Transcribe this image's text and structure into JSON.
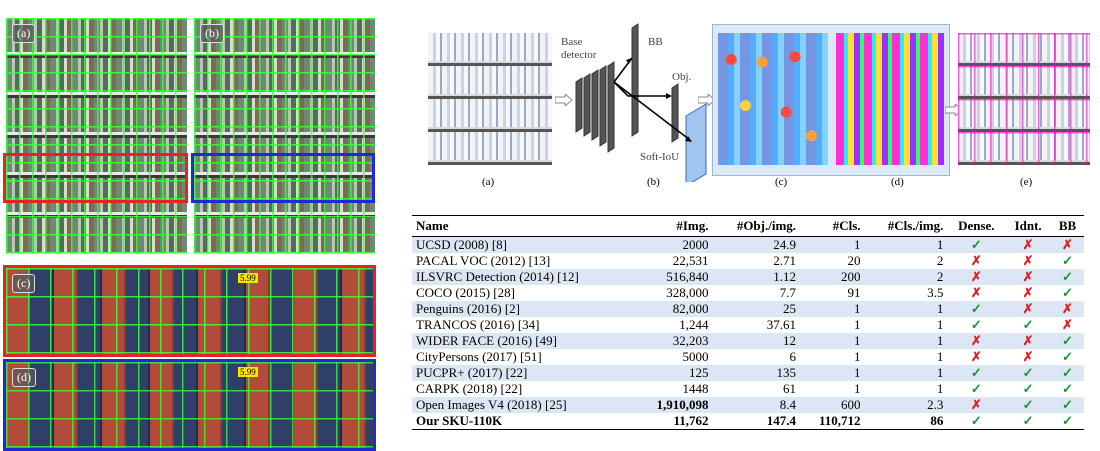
{
  "left_panels": {
    "a_label": "(a)",
    "b_label": "(b)",
    "c_label": "(c)",
    "d_label": "(d)",
    "price_tag": "5.99"
  },
  "pipeline": {
    "base_detector": "Base detector",
    "bb": "BB",
    "obj": "Obj.",
    "soft_iou": "Soft-IoU",
    "captions": [
      "(a)",
      "(b)",
      "(c)",
      "(d)",
      "(e)"
    ]
  },
  "table": {
    "headers": [
      "Name",
      "#Img.",
      "#Obj./img.",
      "#Cls.",
      "#Cls./img.",
      "Dense.",
      "Idnt.",
      "BB"
    ],
    "rows": [
      [
        "UCSD (2008) [8]",
        "2000",
        "24.9",
        "1",
        "1",
        "✓",
        "✗",
        "✗"
      ],
      [
        "PACAL VOC (2012) [13]",
        "22,531",
        "2.71",
        "20",
        "2",
        "✗",
        "✗",
        "✓"
      ],
      [
        "ILSVRC Detection (2014) [12]",
        "516,840",
        "1.12",
        "200",
        "2",
        "✗",
        "✗",
        "✓"
      ],
      [
        "COCO (2015) [28]",
        "328,000",
        "7.7",
        "91",
        "3.5",
        "✗",
        "✗",
        "✓"
      ],
      [
        "Penguins (2016) [2]",
        "82,000",
        "25",
        "1",
        "1",
        "✓",
        "✗",
        "✗"
      ],
      [
        "TRANCOS (2016) [34]",
        "1,244",
        "37.61",
        "1",
        "1",
        "✓",
        "✓",
        "✗"
      ],
      [
        "WIDER FACE (2016) [49]",
        "32,203",
        "12",
        "1",
        "1",
        "✗",
        "✗",
        "✓"
      ],
      [
        "CityPersons (2017) [51]",
        "5000",
        "6",
        "1",
        "1",
        "✗",
        "✗",
        "✓"
      ],
      [
        "PUCPR+ (2017) [22]",
        "125",
        "135",
        "1",
        "1",
        "✓",
        "✓",
        "✓"
      ],
      [
        "CARPK (2018) [22]",
        "1448",
        "61",
        "1",
        "1",
        "✓",
        "✓",
        "✓"
      ],
      [
        "Open Images V4 (2018) [25]",
        "1,910,098",
        "8.4",
        "600",
        "2.3",
        "✗",
        "✓",
        "✓"
      ],
      [
        "Our SKU-110K",
        "11,762",
        "147.4",
        "110,712",
        "86",
        "✓",
        "✓",
        "✓"
      ]
    ],
    "colors": {
      "check": "#0f9b2f",
      "cross": "#e02020",
      "stripe": "#dce6f5",
      "red_frame": "#e8202a",
      "blue_frame": "#1f2ad6"
    }
  }
}
